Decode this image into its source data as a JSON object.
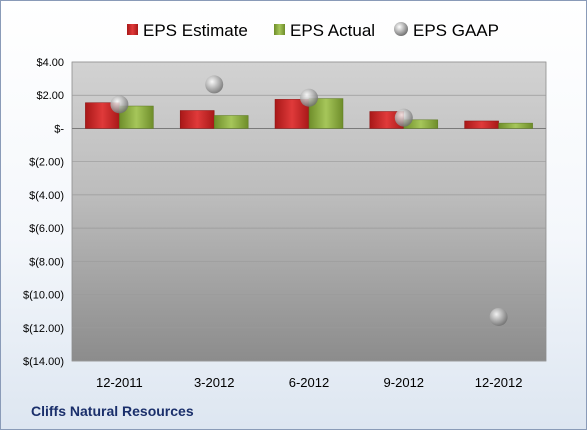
{
  "company": "Cliffs Natural Resources",
  "colors": {
    "estimate": "#cc2a2a",
    "actual": "#8fb240",
    "gaap": "#b8b8b8",
    "company_text": "#1a2f6b"
  },
  "chart_data": {
    "type": "bar",
    "categories": [
      "12-2011",
      "3-2012",
      "6-2012",
      "9-2012",
      "12-2012"
    ],
    "series": [
      {
        "name": "EPS Estimate",
        "kind": "bar",
        "values": [
          1.55,
          1.08,
          1.75,
          1.02,
          0.45
        ]
      },
      {
        "name": "EPS Actual",
        "kind": "bar",
        "values": [
          1.35,
          0.78,
          1.8,
          0.52,
          0.32
        ]
      },
      {
        "name": "EPS GAAP",
        "kind": "marker",
        "values": [
          1.45,
          2.65,
          1.85,
          0.65,
          -11.35
        ]
      }
    ],
    "ylim": [
      -14,
      4
    ],
    "yticks": [
      4,
      2,
      0,
      -2,
      -4,
      -6,
      -8,
      -10,
      -12,
      -14
    ],
    "ytick_labels": [
      "$4.00",
      "$2.00",
      "$-",
      "$(2.00)",
      "$(4.00)",
      "$(6.00)",
      "$(8.00)",
      "$(10.00)",
      "$(12.00)",
      "$(14.00)"
    ],
    "grid": true,
    "legend_position": "top"
  }
}
